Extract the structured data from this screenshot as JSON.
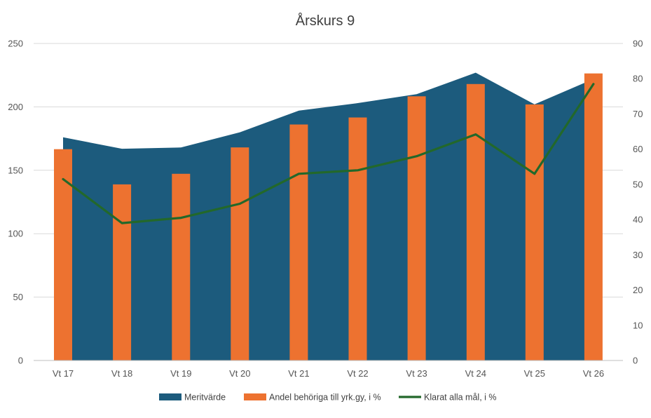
{
  "chart_data": {
    "type": "combo",
    "title": "Årskurs 9",
    "categories": [
      "Vt 17",
      "Vt 18",
      "Vt 19",
      "Vt 20",
      "Vt 21",
      "Vt 22",
      "Vt 23",
      "Vt 24",
      "Vt 25",
      "Vt 26"
    ],
    "y_left": {
      "ylim": [
        0,
        250
      ],
      "ticks": [
        0,
        50,
        100,
        150,
        200,
        250
      ]
    },
    "y_right": {
      "ylim": [
        0,
        90
      ],
      "ticks": [
        0,
        10,
        20,
        30,
        40,
        50,
        60,
        70,
        80,
        90
      ]
    },
    "grid": true,
    "legend_position": "bottom",
    "series": [
      {
        "name": "Meritvärde",
        "type": "area",
        "axis": "left",
        "color": "#1c5b7d",
        "values": [
          176,
          167,
          168,
          180,
          197,
          203,
          210,
          227,
          202,
          222
        ]
      },
      {
        "name": "Andel behöriga till yrk.gy, i %",
        "type": "bar",
        "axis": "right",
        "color": "#ed7230",
        "values": [
          60,
          50,
          53,
          60.5,
          67,
          69,
          75,
          78.5,
          72.7,
          81.5
        ]
      },
      {
        "name": "Klarat alla mål, i %",
        "type": "line",
        "axis": "right",
        "color": "#23682a",
        "values": [
          51.5,
          39,
          40.5,
          44.5,
          53,
          54,
          58,
          64.2,
          53,
          78.5
        ]
      }
    ]
  }
}
